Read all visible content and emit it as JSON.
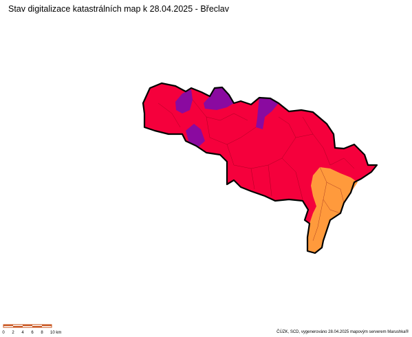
{
  "title": "Stav digitalizace katastrálních map k 28.04.2025 - Břeclav",
  "scale_bar": {
    "labels": [
      "0",
      "2",
      "4",
      "6",
      "8",
      "10 km"
    ]
  },
  "credit": "ČÚZK, SCD, vygenerováno 28.04.2025 mapovým serverem Marushka®"
}
